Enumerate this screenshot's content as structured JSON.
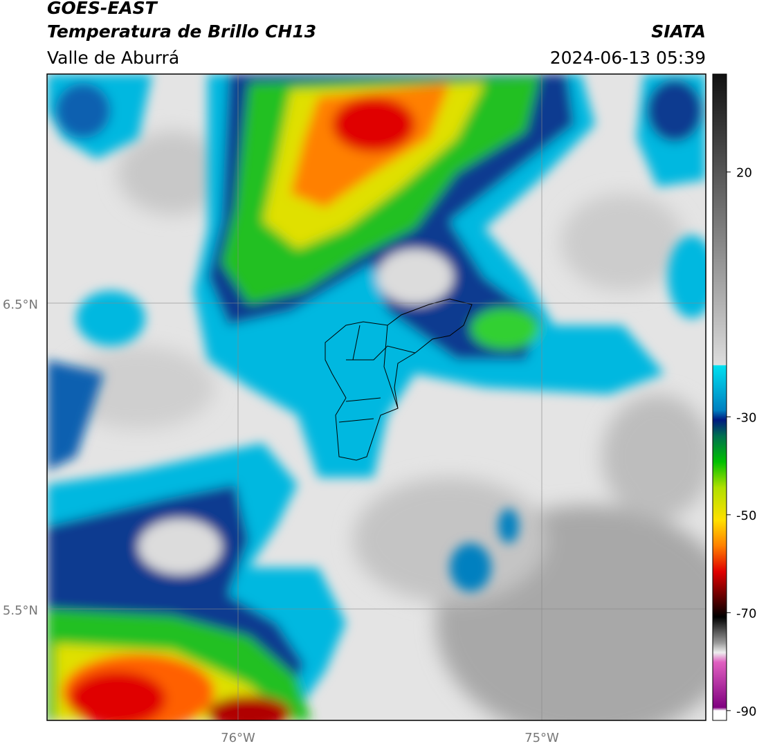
{
  "header": {
    "title": "GOES-EAST",
    "subtitle": "Temperatura de Brillo CH13",
    "source": "SIATA",
    "region": "Valle de Aburrá",
    "datetime": "2024-06-13 05:39"
  },
  "map": {
    "lat_labels": [
      "6.5°N",
      "5.5°N"
    ],
    "lon_labels": [
      "76°W",
      "75°W"
    ]
  },
  "colorbar": {
    "lim": [
      -92,
      40
    ],
    "ticks": [
      20,
      -30,
      -50,
      -70,
      -90
    ]
  }
}
